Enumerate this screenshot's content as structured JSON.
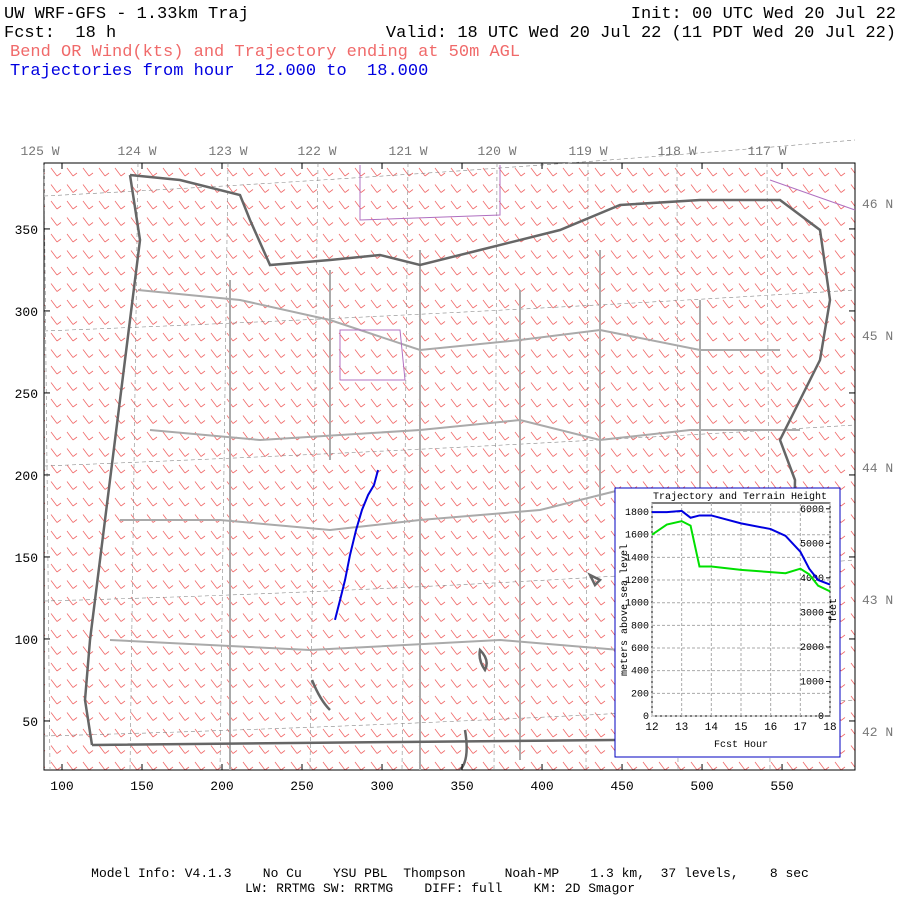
{
  "header": {
    "title": "UW WRF-GFS - 1.33km Traj",
    "init": "Init: 00 UTC Wed 20 Jul 22",
    "forecast": "Fcst:  18 h",
    "valid": "Valid: 18 UTC Wed 20 Jul 22 (11 PDT Wed 20 Jul 22)",
    "field": "Bend OR Wind(kts) and Trajectory ending at 50m AGL",
    "trajectory": "Trajectories from hour  12.000 to  18.000"
  },
  "map": {
    "longitudes": [
      "125 W",
      "124 W",
      "123 W",
      "122 W",
      "121 W",
      "120 W",
      "119 W",
      "118 W",
      "117 W"
    ],
    "latitudes": [
      "46 N",
      "45 N",
      "44 N",
      "43 N",
      "42 N"
    ],
    "xlim": [
      88.75,
      595.6
    ],
    "xticks": [
      100,
      150,
      200,
      250,
      300,
      350,
      400,
      450,
      500,
      550
    ],
    "ylim": [
      20.1,
      390.2
    ],
    "yticks": [
      50,
      100,
      150,
      200,
      250,
      300,
      350
    ],
    "trajectory": {
      "color": "#0000e0",
      "x": [
        270.6,
        273.8,
        276.9,
        280,
        283.8,
        287.5,
        291.3,
        295,
        297.5
      ],
      "y": [
        111.6,
        123.8,
        136,
        151.2,
        166.5,
        178.7,
        187.8,
        193.9,
        203
      ]
    }
  },
  "chart_data": {
    "type": "line",
    "title": "Trajectory and Terrain Height",
    "xlabel": "Fcst Hour",
    "ylabel": "meters above sea level",
    "y2label": "feet",
    "x": [
      12,
      12.5,
      13,
      13.3,
      13.6,
      14,
      15,
      16,
      16.5,
      17,
      17.3,
      17.6,
      18
    ],
    "series": [
      {
        "name": "Trajectory",
        "color": "#0000e0",
        "values": [
          1800,
          1800,
          1810,
          1750,
          1770,
          1770,
          1700,
          1650,
          1590,
          1450,
          1300,
          1200,
          1160
        ]
      },
      {
        "name": "Terrain",
        "color": "#00e000",
        "values": [
          1600,
          1690,
          1720,
          1680,
          1320,
          1320,
          1290,
          1270,
          1260,
          1300,
          1250,
          1150,
          1100
        ]
      }
    ],
    "xlim": [
      12,
      18
    ],
    "xticks": [
      12,
      13,
      14,
      15,
      16,
      17,
      18
    ],
    "ylim": [
      0,
      1880
    ],
    "yticks": [
      0,
      200,
      400,
      600,
      800,
      1000,
      1200,
      1400,
      1600,
      1800
    ],
    "y2lim": [
      0,
      6168
    ],
    "y2ticks": [
      0,
      1000,
      2000,
      3000,
      4000,
      5000,
      6000
    ],
    "grid": true
  },
  "footer": {
    "line1": "Model Info: V4.1.3    No Cu    YSU PBL  Thompson     Noah-MP    1.3 km,  37 levels,    8 sec",
    "line2": "LW: RRTMG SW: RRTMG    DIFF: full    KM: 2D Smagor"
  }
}
